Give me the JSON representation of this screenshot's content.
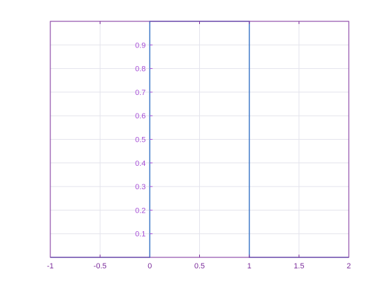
{
  "chart_data": {
    "type": "line",
    "title": "",
    "xlabel": "",
    "ylabel": "",
    "xlim": [
      -1,
      2
    ],
    "ylim": [
      0,
      1
    ],
    "grid": true,
    "legend": "none",
    "x_ticks": [
      -1,
      -0.5,
      0,
      0.5,
      1,
      1.5,
      2
    ],
    "x_tick_labels": [
      "-1",
      "-0.5",
      "0",
      "0.5",
      "1",
      "1.5",
      "2"
    ],
    "y_ticks": [
      0.1,
      0.2,
      0.3,
      0.4,
      0.5,
      0.6,
      0.7,
      0.8,
      0.9
    ],
    "y_tick_labels": [
      "0.1",
      "0.2",
      "0.3",
      "0.4",
      "0.5",
      "0.6",
      "0.7",
      "0.8",
      "0.9"
    ],
    "y_axis_location": "origin",
    "series": [
      {
        "x": [
          -1,
          0,
          0,
          1,
          1,
          2
        ],
        "y": [
          0,
          0,
          1,
          1,
          0,
          0
        ]
      }
    ]
  },
  "colors": {
    "axes": "#7a2a9a",
    "tick_labels": "#a64dd6",
    "grid": "#e3e3ec",
    "line": "#3f78c8",
    "y_axis": "#3f78c8"
  }
}
